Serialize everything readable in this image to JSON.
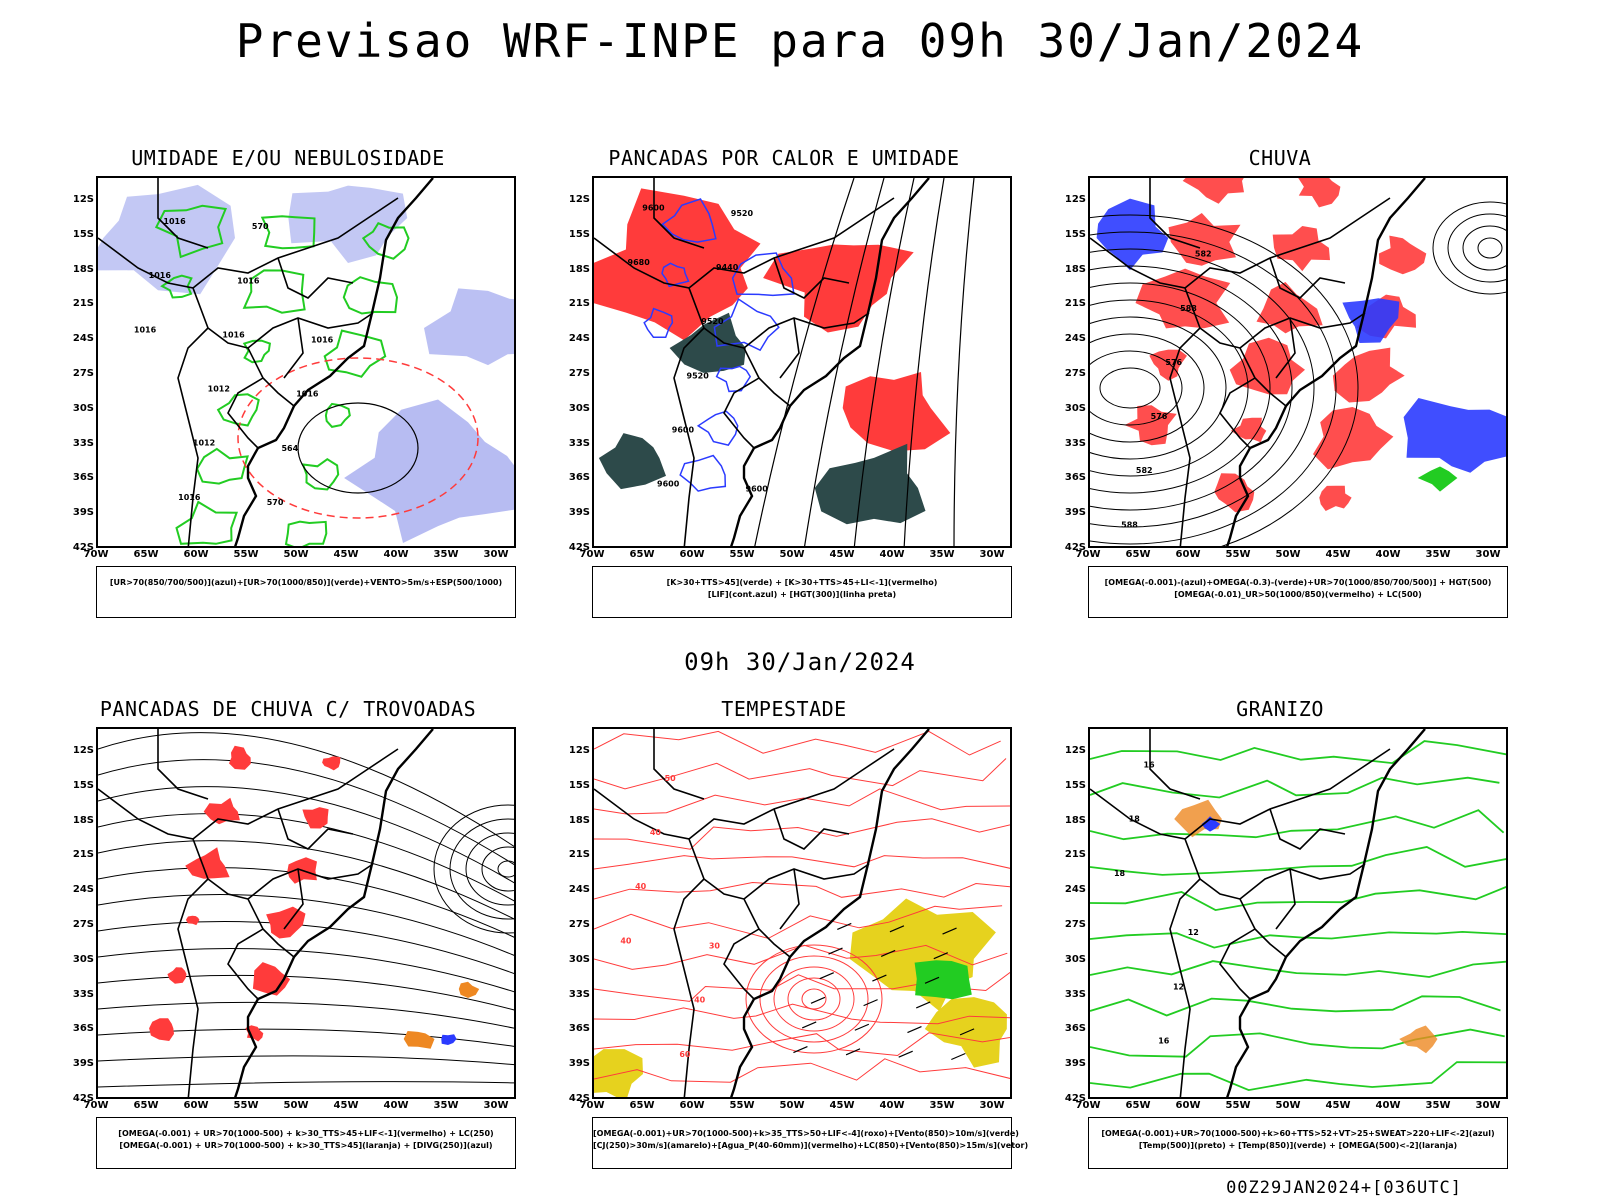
{
  "page": {
    "title": "Previsao WRF-INPE  para 09h 30/Jan/2024",
    "mid_title": "09h 30/Jan/2024",
    "footer": "00Z29JAN2024+[036UTC]"
  },
  "axes": {
    "lat_labels": [
      "12S",
      "15S",
      "18S",
      "21S",
      "24S",
      "27S",
      "30S",
      "33S",
      "36S",
      "39S",
      "42S"
    ],
    "lon_labels": [
      "70W",
      "65W",
      "60W",
      "55W",
      "50W",
      "45W",
      "40W",
      "35W",
      "30W"
    ],
    "lat_range": [
      -42,
      -10
    ],
    "lon_range": [
      -70,
      -28
    ]
  },
  "colors": {
    "red": "#ff3b3b",
    "blue": "#2b3bff",
    "green": "#22cc22",
    "lavender": "#aab0f0",
    "darkteal": "#2d4a4a",
    "yellow": "#e6d21e",
    "orange": "#ee8822",
    "purple": "#cc22cc"
  },
  "panels": [
    {
      "title": "UMIDADE E/OU NEBULOSIDADE",
      "legend": [
        "[UR>70(850/700/500)](azul)+[UR>70(1000/850)](verde)+VENTO>5m/s+ESP(500/1000)"
      ],
      "contour_labels": [
        "1016",
        "1016",
        "1016",
        "1016",
        "1012",
        "1012",
        "1016",
        "1016",
        "570",
        "570",
        "564",
        "1016",
        "1016"
      ]
    },
    {
      "title": "PANCADAS POR CALOR E UMIDADE",
      "legend": [
        "[K>30+TTS>45](verde) + [K>30+TTS>45+LI<-1](vermelho)",
        "[LIF](cont.azul) + [HGT(300)](linha preta)"
      ],
      "contour_labels": [
        "9680",
        "9600",
        "9600",
        "9600",
        "9520",
        "9520",
        "9440",
        "9520",
        "9600"
      ]
    },
    {
      "title": "CHUVA",
      "legend": [
        "[OMEGA(-0.001)-(azul)+OMEGA(-0.3)-(verde)+UR>70(1000/850/700/500)] + HGT(500)",
        "[OMEGA(-0.01)_UR>50(1000/850)(vermelho) + LC(500)"
      ],
      "contour_labels": [
        "588",
        "582",
        "576",
        "576",
        "588",
        "582"
      ]
    },
    {
      "title": "PANCADAS DE CHUVA C/ TROVOADAS",
      "legend": [
        "[OMEGA(-0.001) + UR>70(1000-500) + k>30_TTS>45+LIF<-1](vermelho) + LC(250)",
        "[OMEGA(-0.001) + UR>70(1000-500) + k>30_TTS>45](laranja) + [DIVG(250)](azul)"
      ],
      "contour_labels": []
    },
    {
      "title": "TEMPESTADE",
      "legend": [
        "[OMEGA(-0.001)+UR>70(1000-500)+k>35_TTS>50+LIF<-4](roxo)+[Vento(850)>10m/s](verde)",
        "[CJ(250)>30m/s](amarelo)+[Agua_P(40-60mm)](vermelho)+LC(850)+[Vento(850)>15m/s](vetor)"
      ],
      "contour_labels": [
        "40",
        "40",
        "40",
        "50",
        "60",
        "40",
        "30"
      ]
    },
    {
      "title": "GRANIZO",
      "legend": [
        "[OMEGA(-0.001)+UR>70(1000-500)+k>60+TTS>52+VT>25+SWEAT>220+LIF<-2](azul)",
        "[Temp(500)](preto) + [Temp(850)](verde) + [OMEGA(500)<-2](laranja)"
      ],
      "contour_labels": [
        "18",
        "18",
        "16",
        "16",
        "12",
        "12"
      ]
    }
  ]
}
